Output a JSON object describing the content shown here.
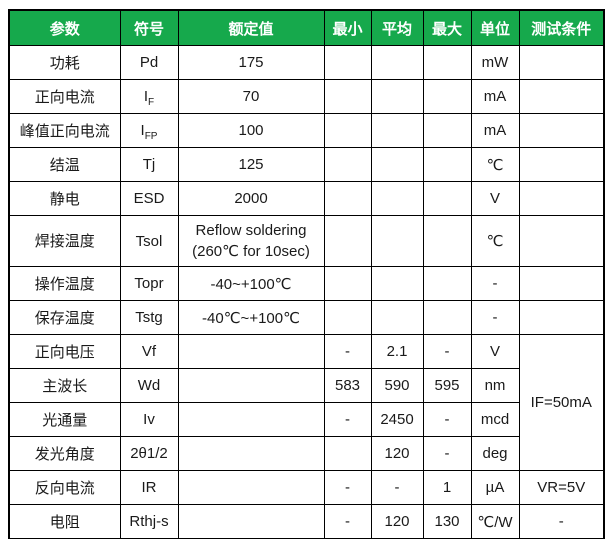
{
  "colors": {
    "header_bg": "#16A94C",
    "header_text": "#ffffff",
    "border": "#000000"
  },
  "table": {
    "column_keys": [
      "param",
      "symbol",
      "rated",
      "min",
      "avg",
      "max",
      "unit",
      "condition"
    ],
    "headers": [
      "参数",
      "符号",
      "额定值",
      "最小",
      "平均",
      "最大",
      "单位",
      "测试条件"
    ],
    "rows": [
      {
        "param": "功耗",
        "symbol": "Pd",
        "rated": "175",
        "min": "",
        "avg": "",
        "max": "",
        "unit": "mW",
        "cond": ""
      },
      {
        "param": "正向电流",
        "symbol": "I_F",
        "rated": "70",
        "min": "",
        "avg": "",
        "max": "",
        "unit": "mA",
        "cond": ""
      },
      {
        "param": "峰值正向电流",
        "symbol": "I_FP",
        "rated": "100",
        "min": "",
        "avg": "",
        "max": "",
        "unit": "mA",
        "cond": ""
      },
      {
        "param": "结温",
        "symbol": "Tj",
        "rated": "125",
        "min": "",
        "avg": "",
        "max": "",
        "unit": "℃",
        "cond": ""
      },
      {
        "param": "静电",
        "symbol": "ESD",
        "rated": "2000",
        "min": "",
        "avg": "",
        "max": "",
        "unit": "V",
        "cond": ""
      },
      {
        "param": "焊接温度",
        "symbol": "Tsol",
        "rated": [
          "Reflow soldering",
          "(260℃ for 10sec)"
        ],
        "min": "",
        "avg": "",
        "max": "",
        "unit": "℃",
        "cond": "",
        "tall": true
      },
      {
        "param": "操作温度",
        "symbol": "Topr",
        "rated": "-40~+100℃",
        "min": "",
        "avg": "",
        "max": "",
        "unit": "-",
        "cond": ""
      },
      {
        "param": "保存温度",
        "symbol": "Tstg",
        "rated": "-40℃~+100℃",
        "min": "",
        "avg": "",
        "max": "",
        "unit": "-",
        "cond": ""
      },
      {
        "param": "正向电压",
        "symbol": "Vf",
        "rated": "",
        "min": "-",
        "avg": "2.1",
        "max": "-",
        "unit": "V",
        "cond": "IF=50mA",
        "cond_rowspan": 4
      },
      {
        "param": "主波长",
        "symbol": "Wd",
        "rated": "",
        "min": "583",
        "avg": "590",
        "max": "595",
        "unit": "nm",
        "cond_skip": true
      },
      {
        "param": "光通量",
        "symbol": "Iv",
        "rated": "",
        "min": "-",
        "avg": "2450",
        "max": "-",
        "unit": "mcd",
        "cond_skip": true
      },
      {
        "param": "发光角度",
        "symbol": "2θ1/2",
        "rated": "",
        "min": "",
        "avg": "120",
        "max": "-",
        "unit": "deg",
        "cond_skip": true
      },
      {
        "param": "反向电流",
        "symbol": "IR",
        "rated": "",
        "min": "-",
        "avg": "-",
        "max": "1",
        "unit": "µA",
        "cond": "VR=5V"
      },
      {
        "param": "电阻",
        "symbol": "Rthj-s",
        "rated": "",
        "min": "-",
        "avg": "120",
        "max": "130",
        "unit": "℃/W",
        "cond": "-"
      }
    ]
  }
}
